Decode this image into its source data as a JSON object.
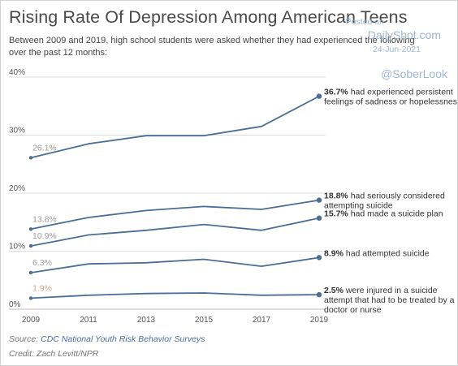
{
  "header": {
    "title": "Rising Rate Of Depression Among American Teens",
    "subtitle": "Between 2009 and 2019, high school students were asked whether they had experienced the following over the past 12 months:"
  },
  "watermark": {
    "posted_on": "Posted on",
    "site": "DailyShot.com",
    "date": "24-Jun-2021",
    "handle": "@SoberLook"
  },
  "footer": {
    "source_prefix": "Source: ",
    "source_link": "CDC National Youth Risk Behavior Surveys",
    "credit": "Credit: Zach Levitt/NPR"
  },
  "colors": {
    "line": "#4b6e96",
    "grid": "#dddddd",
    "axis_text": "#555555",
    "start_label": "#9a9a9a",
    "start_label_last": "#d9a58a"
  },
  "chart_data": {
    "type": "line",
    "x": [
      2009,
      2011,
      2013,
      2015,
      2017,
      2019
    ],
    "ylim": [
      0,
      40
    ],
    "yticks": [
      "0%",
      "10%",
      "20%",
      "30%",
      "40%"
    ],
    "ytick_values": [
      0,
      10,
      20,
      30,
      40
    ],
    "xticks": [
      "2009",
      "2011",
      "2013",
      "2015",
      "2017",
      "2019"
    ],
    "grid": "horizontal",
    "series": [
      {
        "values": [
          26.1,
          28.5,
          29.9,
          29.9,
          31.5,
          36.7
        ],
        "start_label": "26.1%",
        "end_value": "36.7%",
        "end_text": [
          "had experienced persistent",
          "feelings of sadness or hopelessness"
        ]
      },
      {
        "values": [
          13.8,
          15.8,
          17.0,
          17.7,
          17.2,
          18.8
        ],
        "start_label": "13.8%",
        "end_value": "18.8%",
        "end_text": [
          "had seriously considered",
          "attempting suicide"
        ]
      },
      {
        "values": [
          10.9,
          12.8,
          13.6,
          14.6,
          13.6,
          15.7
        ],
        "start_label": "10.9%",
        "end_value": "15.7%",
        "end_text": [
          "had made a suicide plan"
        ]
      },
      {
        "values": [
          6.3,
          7.8,
          8.0,
          8.6,
          7.4,
          8.9
        ],
        "start_label": "6.3%",
        "end_value": "8.9%",
        "end_text": [
          "had attempted suicide"
        ]
      },
      {
        "values": [
          1.9,
          2.4,
          2.7,
          2.8,
          2.4,
          2.5
        ],
        "start_label": "1.9%",
        "end_value": "2.5%",
        "end_text": [
          "were injured in a suicide",
          "attempt that had to be treated by a",
          "doctor or nurse"
        ]
      }
    ]
  }
}
